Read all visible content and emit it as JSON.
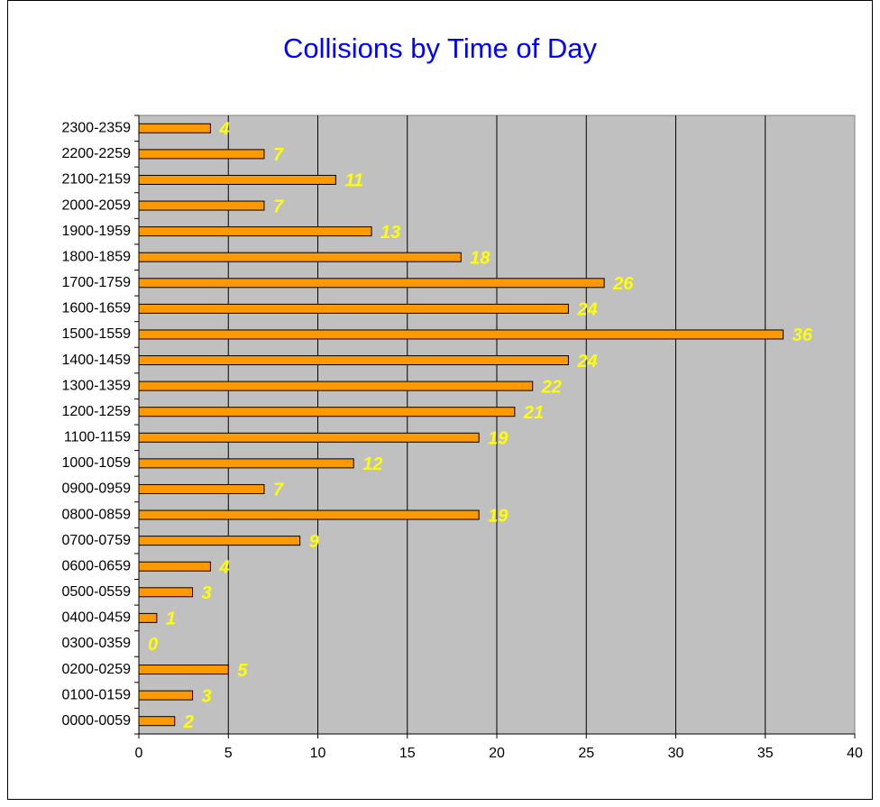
{
  "chart_data": {
    "type": "bar",
    "orientation": "horizontal",
    "title": "Collisions by Time of Day",
    "categories": [
      "0000-0059",
      "0100-0159",
      "0200-0259",
      "0300-0359",
      "0400-0459",
      "0500-0559",
      "0600-0659",
      "0700-0759",
      "0800-0859",
      "0900-0959",
      "1000-1059",
      "1100-1159",
      "1200-1259",
      "1300-1359",
      "1400-1459",
      "1500-1559",
      "1600-1659",
      "1700-1759",
      "1800-1859",
      "1900-1959",
      "2000-2059",
      "2100-2159",
      "2200-2259",
      "2300-2359"
    ],
    "values": [
      2,
      3,
      5,
      0,
      1,
      3,
      4,
      9,
      19,
      7,
      12,
      19,
      21,
      22,
      24,
      36,
      24,
      26,
      18,
      13,
      7,
      11,
      7,
      4
    ],
    "color": "#ff9900",
    "label_color": "#ffff00",
    "title_color": "#0000ff",
    "plot_background": "#c0c0c0",
    "xlim": [
      0,
      40
    ],
    "xticks": [
      0,
      5,
      10,
      15,
      20,
      25,
      30,
      35,
      40
    ],
    "grid": true
  }
}
